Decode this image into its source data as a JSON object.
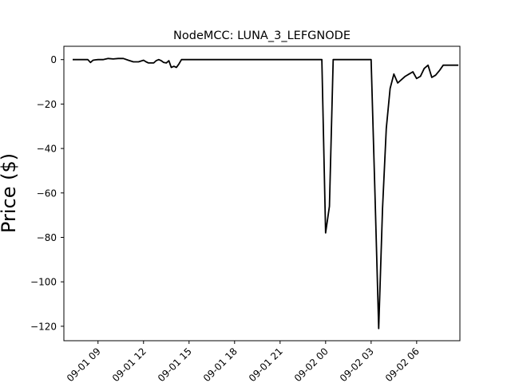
{
  "chart_data": {
    "type": "line",
    "title": "NodeMCC: LUNA_3_LEFGNODE",
    "xlabel": "",
    "ylabel": "Price ($)",
    "x_tick_labels": [
      "09-01 09",
      "09-01 12",
      "09-01 15",
      "09-01 18",
      "09-01 21",
      "09-02 00",
      "09-02 03",
      "09-02 06"
    ],
    "y_ticks": [
      0,
      -20,
      -40,
      -60,
      -80,
      -100,
      -120
    ],
    "ylim": [
      -126.5,
      6
    ],
    "xlim_hours": [
      6.75,
      32.85
    ],
    "grid": false,
    "line_color": "#000000",
    "series": [
      {
        "x": [
          7.33,
          7.67,
          8.0,
          8.33,
          8.5,
          8.67,
          8.83,
          9.0,
          9.33,
          9.67,
          10.0,
          10.33,
          10.67,
          11.0,
          11.33,
          11.67,
          12.0,
          12.17,
          12.33,
          12.67,
          12.83,
          13.0,
          13.17,
          13.33,
          13.5,
          13.67,
          13.83,
          14.0,
          14.17,
          14.33,
          14.5,
          14.67,
          15.0,
          18.0,
          21.0,
          23.5,
          23.75,
          24.0,
          24.25,
          24.5,
          25.0,
          26.0,
          26.75,
          27.0,
          27.25,
          27.5,
          27.75,
          28.0,
          28.25,
          28.5,
          28.75,
          29.0,
          29.25,
          29.5,
          29.75,
          30.0,
          30.25,
          30.5,
          30.75,
          31.0,
          31.25,
          31.5,
          31.75,
          32.0,
          32.25,
          32.5,
          32.75
        ],
        "y": [
          0,
          0,
          0,
          0,
          -1.3,
          -0.3,
          -0.1,
          0,
          0,
          0.5,
          0.3,
          0.5,
          0.5,
          -0.3,
          -1.0,
          -1.0,
          -0.3,
          -1.0,
          -1.5,
          -1.5,
          -0.5,
          0,
          -0.5,
          -1.3,
          -1.5,
          -0.5,
          -3.5,
          -3.0,
          -3.5,
          -2.0,
          0,
          0,
          0,
          0,
          0,
          0,
          0,
          -78,
          -66,
          0,
          0,
          0,
          0,
          0,
          -60,
          -121,
          -67,
          -31,
          -13,
          -6.5,
          -10.5,
          -9,
          -7.5,
          -6.5,
          -5.5,
          -8.5,
          -7.5,
          -4,
          -2.5,
          -8,
          -7,
          -5,
          -2.5,
          -2.5,
          -2.5,
          -2.5,
          -2.5
        ]
      }
    ]
  }
}
